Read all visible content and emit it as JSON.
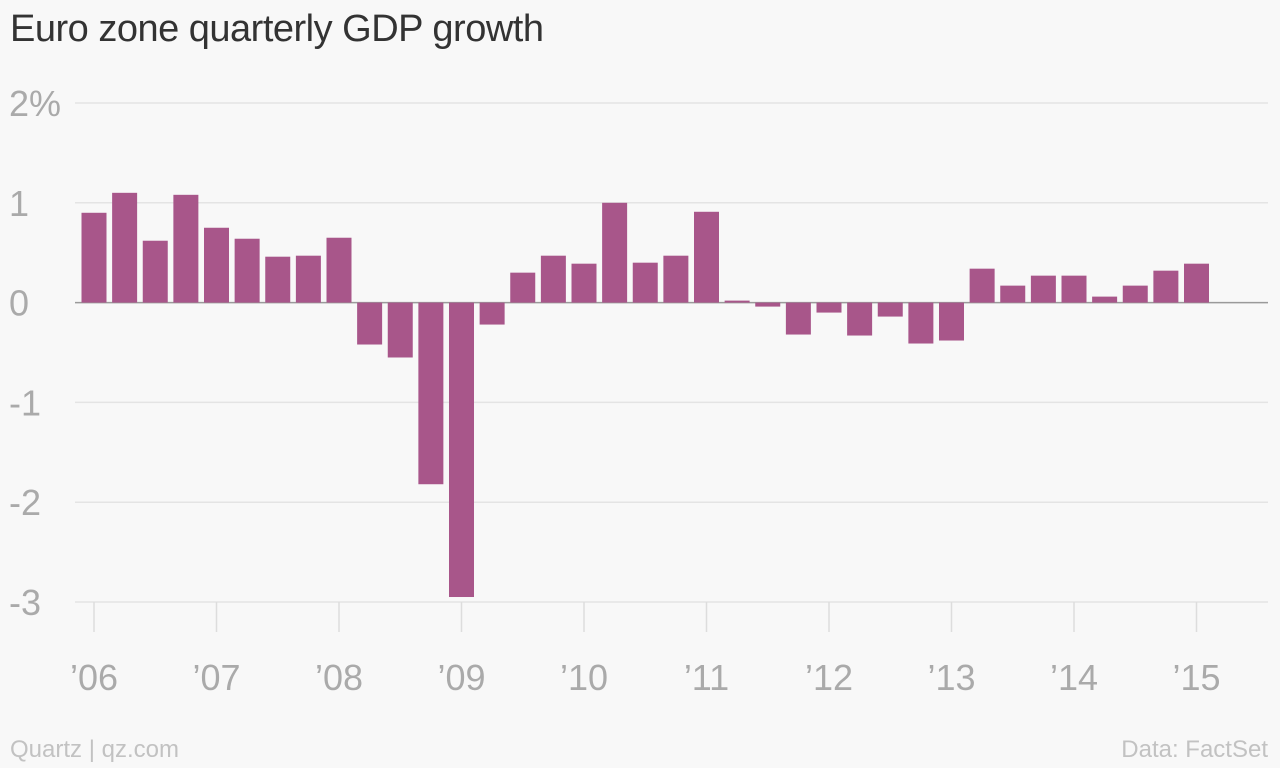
{
  "chart_data": {
    "type": "bar",
    "title": "Euro zone quarterly GDP growth",
    "xlabel": "",
    "ylabel": "",
    "ylim": [
      -3,
      2
    ],
    "y_ticks": [
      {
        "value": 2,
        "label": "2%"
      },
      {
        "value": 1,
        "label": "1"
      },
      {
        "value": 0,
        "label": "0"
      },
      {
        "value": -1,
        "label": "-1"
      },
      {
        "value": -2,
        "label": "-2"
      },
      {
        "value": -3,
        "label": "-3"
      }
    ],
    "x_ticks": [
      "’06",
      "’07",
      "’08",
      "’09",
      "’10",
      "’11",
      "’12",
      "’13",
      "’14",
      "’15"
    ],
    "categories": [
      "2006 Q1",
      "2006 Q2",
      "2006 Q3",
      "2006 Q4",
      "2007 Q1",
      "2007 Q2",
      "2007 Q3",
      "2007 Q4",
      "2008 Q1",
      "2008 Q2",
      "2008 Q3",
      "2008 Q4",
      "2009 Q1",
      "2009 Q2",
      "2009 Q3",
      "2009 Q4",
      "2010 Q1",
      "2010 Q2",
      "2010 Q3",
      "2010 Q4",
      "2011 Q1",
      "2011 Q2",
      "2011 Q3",
      "2011 Q4",
      "2012 Q1",
      "2012 Q2",
      "2012 Q3",
      "2012 Q4",
      "2013 Q1",
      "2013 Q2",
      "2013 Q3",
      "2013 Q4",
      "2014 Q1",
      "2014 Q2",
      "2014 Q3",
      "2014 Q4",
      "2015 Q1"
    ],
    "values": [
      0.9,
      1.1,
      0.62,
      1.08,
      0.75,
      0.64,
      0.46,
      0.47,
      0.65,
      -0.42,
      -0.55,
      -1.82,
      -2.95,
      -0.22,
      0.3,
      0.47,
      0.39,
      1.0,
      0.4,
      0.47,
      0.91,
      0.02,
      -0.04,
      -0.32,
      -0.1,
      -0.33,
      -0.14,
      -0.41,
      -0.38,
      0.34,
      0.17,
      0.27,
      0.27,
      0.06,
      0.17,
      0.32,
      0.39
    ],
    "grid": true,
    "bar_color": "#a8568a"
  },
  "footer": {
    "source_left": "Quartz | qz.com",
    "source_right": "Data: FactSet"
  }
}
